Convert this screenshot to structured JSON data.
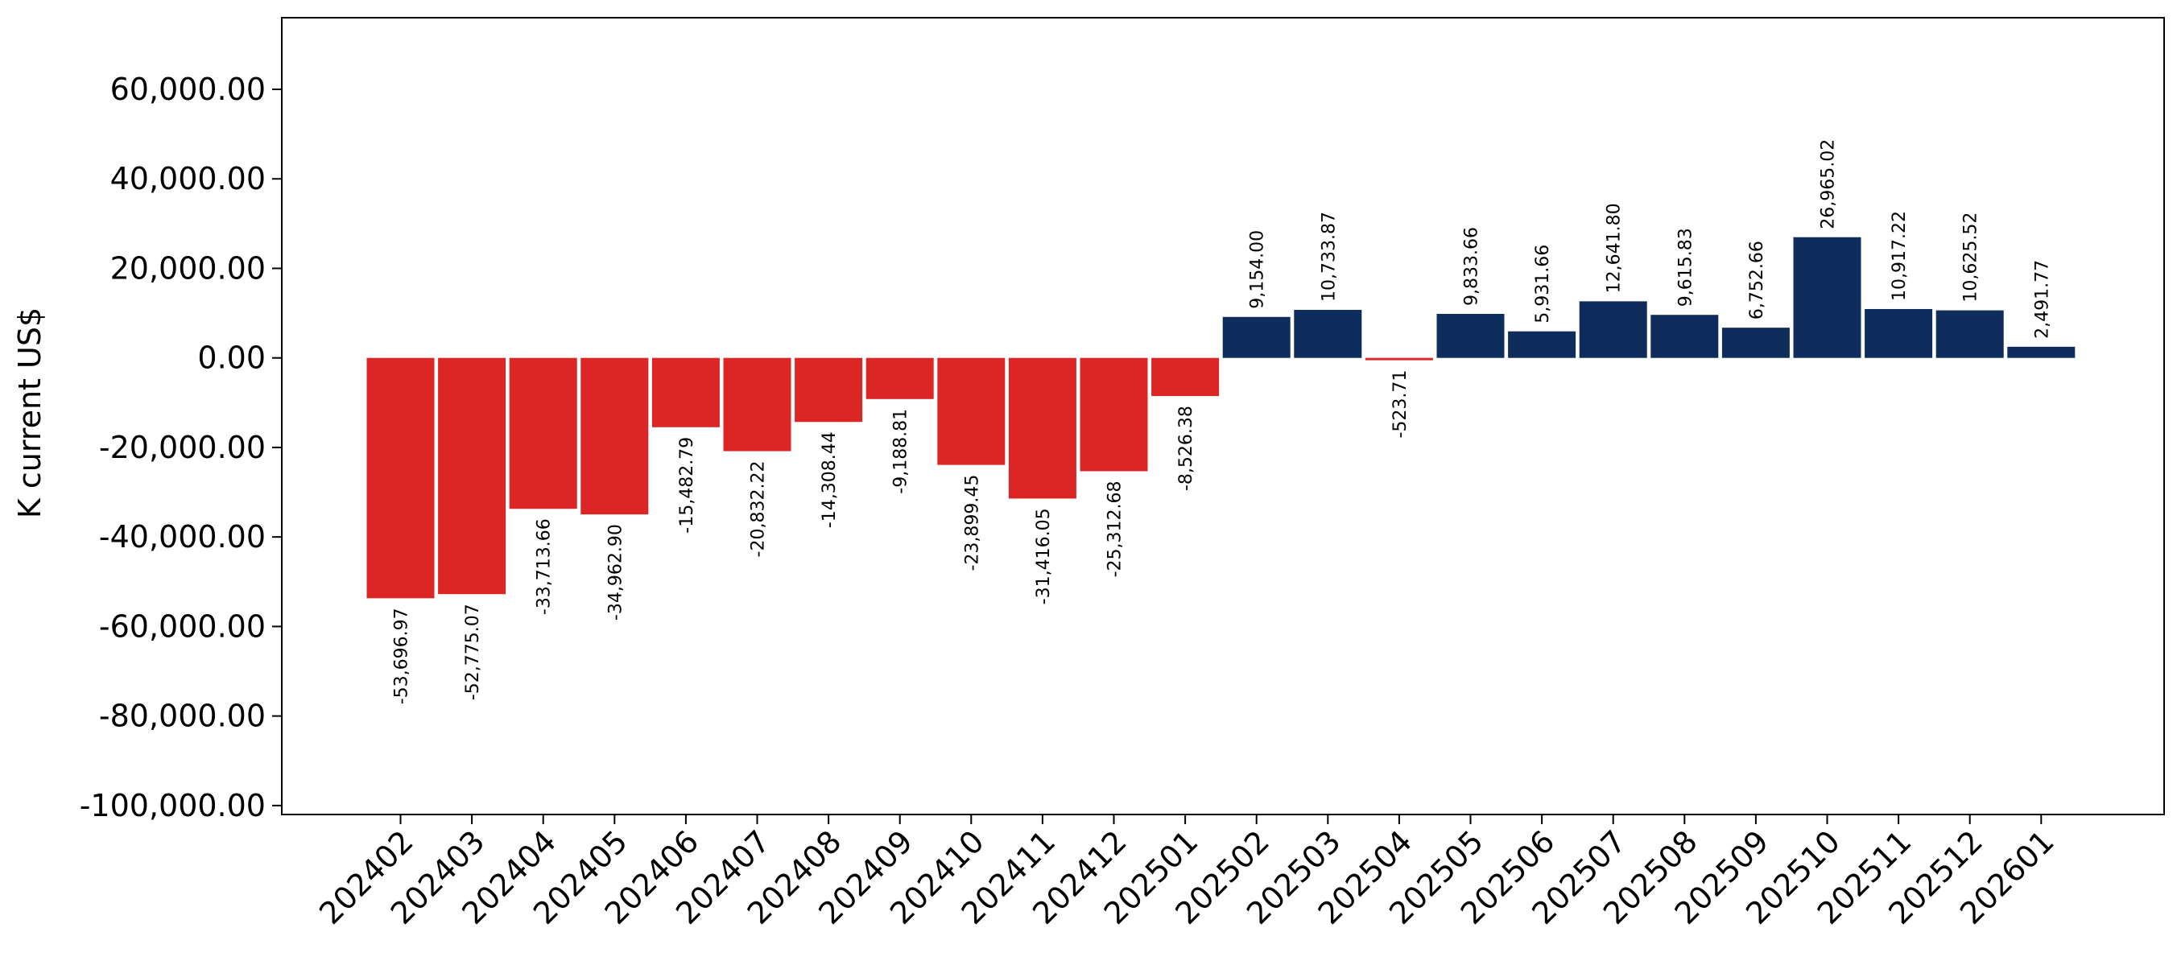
{
  "chart_data": {
    "type": "bar",
    "title": "",
    "xlabel": "",
    "ylabel": "K current US$",
    "ylim": [
      -102000,
      76000
    ],
    "yticks": [
      -100000,
      -80000,
      -60000,
      -40000,
      -20000,
      0,
      20000,
      40000,
      60000
    ],
    "ytick_labels": [
      "-100,000.00",
      "-80,000.00",
      "-60,000.00",
      "-40,000.00",
      "-20,000.00",
      "0.00",
      "20,000.00",
      "40,000.00",
      "60,000.00"
    ],
    "grid": false,
    "legend": "none",
    "categories": [
      "202402",
      "202403",
      "202404",
      "202405",
      "202406",
      "202407",
      "202408",
      "202409",
      "202410",
      "202411",
      "202412",
      "202501",
      "202502",
      "202503",
      "202504",
      "202505",
      "202506",
      "202507",
      "202508",
      "202509",
      "202510",
      "202511",
      "202512",
      "202601"
    ],
    "values": [
      -53696.97,
      -52775.07,
      -33713.66,
      -34962.9,
      -15482.79,
      -20832.22,
      -14308.44,
      -9188.81,
      -23899.45,
      -31416.05,
      -25312.68,
      -8526.38,
      9154.0,
      10733.87,
      -523.71,
      9833.66,
      5931.66,
      12641.8,
      9615.83,
      6752.66,
      26965.02,
      10917.22,
      10625.52,
      2491.77
    ],
    "value_labels": [
      "-53,696.97",
      "-52,775.07",
      "-33,713.66",
      "-34,962.90",
      "-15,482.79",
      "-20,832.22",
      "-14,308.44",
      "-9,188.81",
      "-23,899.45",
      "-31,416.05",
      "-25,312.68",
      "-8,526.38",
      "9,154.00",
      "10,733.87",
      "-523.71",
      "9,833.66",
      "5,931.66",
      "12,641.80",
      "9,615.83",
      "6,752.66",
      "26,965.02",
      "10,917.22",
      "10,625.52",
      "2,491.77"
    ],
    "colors": {
      "negative": "#dc2626",
      "positive": "#0f2d5c"
    }
  }
}
